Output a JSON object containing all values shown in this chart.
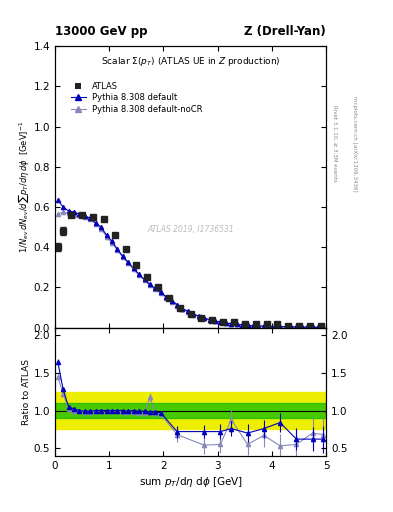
{
  "title_top": "13000 GeV pp",
  "title_right": "Z (Drell-Yan)",
  "panel_title": "Scalar $\\Sigma(p_T)$ (ATLAS UE in $Z$ production)",
  "ylabel_main": "$1/N_{ev}\\,dN_{ev}/d\\sum p_T/d\\eta\\,d\\phi$  [GeV]$^{-1}$",
  "ylabel_ratio": "Ratio to ATLAS",
  "xlabel": "sum $p_T$/d$\\eta$ d$\\phi$ [GeV]",
  "right_label": "mcplots.cern.ch [arXiv:1306.3436]",
  "right_label2": "Rivet 3.1.10, ≥ 3.3M events",
  "watermark": "ATLAS 2019, I1736531",
  "atlas_x": [
    0.05,
    0.15,
    0.3,
    0.5,
    0.7,
    0.9,
    1.1,
    1.3,
    1.5,
    1.7,
    1.9,
    2.1,
    2.3,
    2.5,
    2.7,
    2.9,
    3.1,
    3.3,
    3.5,
    3.7,
    3.9,
    4.1,
    4.3,
    4.5,
    4.7,
    4.9
  ],
  "atlas_y": [
    0.4,
    0.48,
    0.56,
    0.56,
    0.55,
    0.54,
    0.46,
    0.39,
    0.31,
    0.25,
    0.2,
    0.15,
    0.1,
    0.07,
    0.05,
    0.04,
    0.03,
    0.03,
    0.02,
    0.02,
    0.02,
    0.02,
    0.01,
    0.01,
    0.01,
    0.01
  ],
  "atlas_yerr": [
    0.02,
    0.02,
    0.01,
    0.01,
    0.01,
    0.01,
    0.01,
    0.01,
    0.01,
    0.01,
    0.01,
    0.005,
    0.005,
    0.005,
    0.003,
    0.003,
    0.002,
    0.002,
    0.002,
    0.002,
    0.002,
    0.002,
    0.001,
    0.001,
    0.001,
    0.001
  ],
  "py_default_x": [
    0.05,
    0.15,
    0.25,
    0.35,
    0.45,
    0.55,
    0.65,
    0.75,
    0.85,
    0.95,
    1.05,
    1.15,
    1.25,
    1.35,
    1.45,
    1.55,
    1.65,
    1.75,
    1.85,
    1.95,
    2.05,
    2.15,
    2.25,
    2.35,
    2.45,
    2.55,
    2.65,
    2.75,
    2.85,
    2.95,
    3.05,
    3.15,
    3.25,
    3.35,
    3.45,
    3.55,
    3.65,
    3.75,
    3.85,
    3.95,
    4.05,
    4.15,
    4.25,
    4.35,
    4.45,
    4.55,
    4.65,
    4.75,
    4.85,
    4.95
  ],
  "py_default_y": [
    0.635,
    0.6,
    0.58,
    0.575,
    0.565,
    0.555,
    0.545,
    0.52,
    0.5,
    0.46,
    0.43,
    0.39,
    0.355,
    0.325,
    0.295,
    0.265,
    0.24,
    0.215,
    0.195,
    0.175,
    0.155,
    0.135,
    0.115,
    0.095,
    0.082,
    0.068,
    0.058,
    0.048,
    0.04,
    0.034,
    0.028,
    0.024,
    0.02,
    0.017,
    0.014,
    0.012,
    0.01,
    0.009,
    0.008,
    0.007,
    0.006,
    0.005,
    0.005,
    0.004,
    0.004,
    0.003,
    0.003,
    0.002,
    0.002,
    0.002
  ],
  "py_default_yerr": [
    0.005,
    0.004,
    0.004,
    0.003,
    0.003,
    0.003,
    0.003,
    0.003,
    0.003,
    0.003,
    0.002,
    0.002,
    0.002,
    0.002,
    0.002,
    0.002,
    0.002,
    0.002,
    0.002,
    0.001,
    0.001,
    0.001,
    0.001,
    0.001,
    0.001,
    0.001,
    0.001,
    0.001,
    0.001,
    0.001,
    0.001,
    0.001,
    0.001,
    0.001,
    0.001,
    0.001,
    0.001,
    0.001,
    0.001,
    0.001,
    0.001,
    0.001,
    0.001,
    0.001,
    0.001,
    0.001,
    0.001,
    0.001,
    0.001,
    0.001
  ],
  "py_nocr_x": [
    0.05,
    0.15,
    0.25,
    0.35,
    0.45,
    0.55,
    0.65,
    0.75,
    0.85,
    0.95,
    1.05,
    1.15,
    1.25,
    1.35,
    1.45,
    1.55,
    1.65,
    1.75,
    1.85,
    1.95,
    2.05,
    2.15,
    2.25,
    2.35,
    2.45,
    2.55,
    2.65,
    2.75,
    2.85,
    2.95,
    3.05,
    3.15,
    3.25,
    3.35,
    3.45,
    3.55,
    3.65,
    3.75,
    3.85,
    3.95,
    4.05,
    4.15,
    4.25,
    4.35,
    4.45,
    4.55,
    4.65,
    4.75,
    4.85,
    4.95
  ],
  "py_nocr_y": [
    0.565,
    0.575,
    0.568,
    0.562,
    0.558,
    0.552,
    0.54,
    0.515,
    0.492,
    0.452,
    0.422,
    0.385,
    0.35,
    0.32,
    0.29,
    0.26,
    0.235,
    0.21,
    0.19,
    0.17,
    0.15,
    0.13,
    0.11,
    0.092,
    0.078,
    0.065,
    0.055,
    0.046,
    0.038,
    0.032,
    0.027,
    0.022,
    0.019,
    0.016,
    0.014,
    0.011,
    0.009,
    0.008,
    0.007,
    0.006,
    0.005,
    0.005,
    0.004,
    0.004,
    0.003,
    0.003,
    0.002,
    0.002,
    0.002,
    0.002
  ],
  "py_nocr_yerr": [
    0.005,
    0.004,
    0.004,
    0.003,
    0.003,
    0.003,
    0.003,
    0.003,
    0.003,
    0.003,
    0.002,
    0.002,
    0.002,
    0.002,
    0.002,
    0.002,
    0.002,
    0.002,
    0.002,
    0.001,
    0.001,
    0.001,
    0.001,
    0.001,
    0.001,
    0.001,
    0.001,
    0.001,
    0.001,
    0.001,
    0.001,
    0.001,
    0.001,
    0.001,
    0.001,
    0.001,
    0.001,
    0.001,
    0.001,
    0.001,
    0.001,
    0.001,
    0.001,
    0.001,
    0.001,
    0.001,
    0.001,
    0.001,
    0.001,
    0.001
  ],
  "ratio_py_default_x": [
    0.05,
    0.15,
    0.25,
    0.35,
    0.45,
    0.55,
    0.65,
    0.75,
    0.85,
    0.95,
    1.05,
    1.15,
    1.25,
    1.35,
    1.45,
    1.55,
    1.65,
    1.75,
    1.85,
    1.95,
    2.25,
    2.75,
    3.05,
    3.25,
    3.55,
    3.85,
    4.15,
    4.45,
    4.75,
    4.95
  ],
  "ratio_py_default_y": [
    1.65,
    1.28,
    1.05,
    1.02,
    1.0,
    0.99,
    0.99,
    1.0,
    1.0,
    1.0,
    1.0,
    1.0,
    1.0,
    0.99,
    1.0,
    0.99,
    0.99,
    0.98,
    0.98,
    0.97,
    0.72,
    0.72,
    0.72,
    0.76,
    0.7,
    0.76,
    0.84,
    0.62,
    0.62,
    0.62
  ],
  "ratio_py_default_yerr": [
    0.03,
    0.02,
    0.015,
    0.015,
    0.01,
    0.01,
    0.01,
    0.01,
    0.01,
    0.01,
    0.01,
    0.01,
    0.01,
    0.01,
    0.01,
    0.01,
    0.01,
    0.02,
    0.02,
    0.02,
    0.08,
    0.09,
    0.1,
    0.1,
    0.12,
    0.12,
    0.13,
    0.15,
    0.16,
    0.18
  ],
  "ratio_py_nocr_x": [
    0.05,
    0.15,
    0.25,
    0.35,
    0.45,
    0.55,
    0.65,
    0.75,
    0.85,
    0.95,
    1.05,
    1.15,
    1.25,
    1.35,
    1.45,
    1.55,
    1.65,
    1.75,
    1.85,
    1.95,
    2.25,
    2.75,
    3.05,
    3.25,
    3.55,
    3.85,
    4.15,
    4.45,
    4.75,
    4.95
  ],
  "ratio_py_nocr_y": [
    1.45,
    1.22,
    1.02,
    1.0,
    0.99,
    0.98,
    0.98,
    0.99,
    0.99,
    1.0,
    0.99,
    0.99,
    0.98,
    0.98,
    0.98,
    0.97,
    0.97,
    1.18,
    0.97,
    0.95,
    0.68,
    0.54,
    0.55,
    0.88,
    0.55,
    0.67,
    0.53,
    0.55,
    0.7,
    0.68
  ],
  "ratio_py_nocr_yerr": [
    0.03,
    0.02,
    0.015,
    0.015,
    0.01,
    0.01,
    0.01,
    0.01,
    0.01,
    0.01,
    0.01,
    0.01,
    0.01,
    0.01,
    0.01,
    0.01,
    0.01,
    0.05,
    0.02,
    0.02,
    0.1,
    0.12,
    0.12,
    0.13,
    0.14,
    0.15,
    0.16,
    0.18,
    0.2,
    0.22
  ],
  "band_green_lo": 0.9,
  "band_green_hi": 1.1,
  "band_yellow_lo": 0.75,
  "band_yellow_hi": 1.25,
  "color_atlas": "#222222",
  "color_py_default": "#0000bb",
  "color_py_nocr": "#8888bb",
  "color_green": "#00bb00",
  "color_yellow": "#eeee00",
  "xlim": [
    0,
    5.0
  ],
  "ylim_main": [
    0,
    1.4
  ],
  "ylim_ratio": [
    0.4,
    2.1
  ],
  "yticks_main": [
    0.0,
    0.2,
    0.4,
    0.6,
    0.8,
    1.0,
    1.2,
    1.4
  ],
  "yticks_ratio": [
    0.5,
    1.0,
    1.5,
    2.0
  ],
  "xticks": [
    0,
    1,
    2,
    3,
    4,
    5
  ]
}
